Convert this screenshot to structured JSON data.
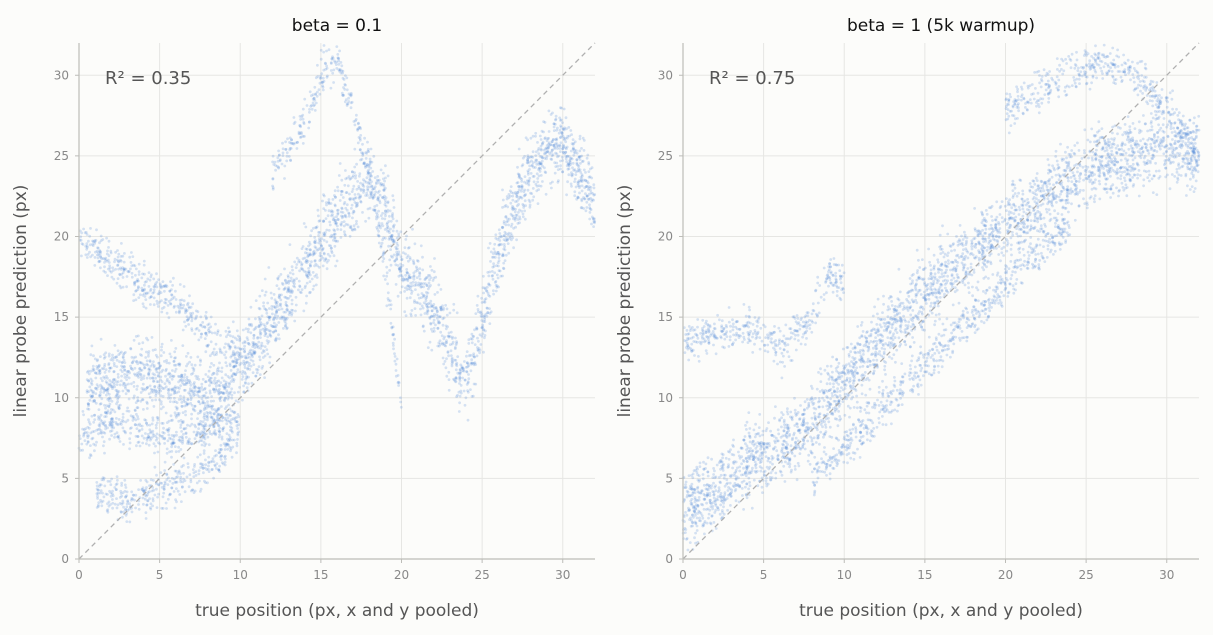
{
  "chart_data": [
    {
      "type": "scatter",
      "title": "beta = 0.1",
      "annotation": "R² = 0.35",
      "xlabel": "true position (px, x and y pooled)",
      "ylabel": "linear probe prediction (px)",
      "xlim": [
        0,
        32
      ],
      "ylim": [
        0,
        32
      ],
      "xticks": [
        "0",
        "5",
        "10",
        "15",
        "20",
        "25",
        "30"
      ],
      "yticks": [
        "0",
        "5",
        "10",
        "15",
        "20",
        "25",
        "30"
      ],
      "grid": true,
      "reference_line": "y = x (dashed)",
      "point_color": "#4a86d8",
      "reference_color": "#b0b0b0",
      "series": [
        {
          "x": [
            0.5,
            2,
            4,
            6,
            8,
            9,
            10,
            11,
            12,
            13,
            14,
            15,
            16,
            17,
            18,
            19,
            20,
            21,
            22,
            23,
            24,
            25,
            26,
            27,
            28,
            29,
            30,
            31,
            32
          ],
          "y": [
            10.5,
            11,
            11.5,
            10.5,
            10,
            10.5,
            12,
            13.5,
            15,
            16.5,
            18,
            19.5,
            21,
            22.5,
            23.5,
            22,
            18,
            17,
            15.5,
            13,
            11,
            15,
            19,
            22,
            24,
            25.5,
            26,
            24,
            22
          ]
        },
        {
          "x": [
            0,
            2,
            4,
            6,
            8,
            10
          ],
          "y": [
            20,
            18.5,
            17,
            16,
            14,
            13
          ]
        },
        {
          "x": [
            0,
            2,
            4,
            6,
            8,
            10
          ],
          "y": [
            7.5,
            8.5,
            8,
            7.5,
            8,
            9
          ]
        },
        {
          "x": [
            1,
            3,
            5,
            7,
            9,
            10
          ],
          "y": [
            4,
            3.5,
            4.5,
            5,
            6.5,
            8
          ]
        },
        {
          "x": [
            12,
            14,
            15,
            16,
            17,
            18,
            19,
            20
          ],
          "y": [
            24,
            27,
            30,
            31,
            28,
            24,
            18,
            9
          ]
        }
      ]
    },
    {
      "type": "scatter",
      "title": "beta = 1 (5k warmup)",
      "annotation": "R² = 0.75",
      "xlabel": "true position (px, x and y pooled)",
      "ylabel": "linear probe prediction (px)",
      "xlim": [
        0,
        32
      ],
      "ylim": [
        0,
        32
      ],
      "xticks": [
        "0",
        "5",
        "10",
        "15",
        "20",
        "25",
        "30"
      ],
      "yticks": [
        "0",
        "5",
        "10",
        "15",
        "20",
        "25",
        "30"
      ],
      "grid": true,
      "reference_line": "y = x (dashed)",
      "point_color": "#4a86d8",
      "reference_color": "#b0b0b0",
      "series": [
        {
          "x": [
            0,
            2,
            4,
            6,
            8,
            10,
            12,
            14,
            16,
            18,
            20,
            22,
            24,
            26,
            28,
            30,
            32
          ],
          "y": [
            3,
            4,
            6,
            7,
            8.5,
            11,
            13.5,
            15.5,
            17.5,
            19,
            20.5,
            22,
            23.5,
            24.5,
            25,
            25.5,
            25
          ]
        },
        {
          "x": [
            0,
            2,
            4,
            6,
            8,
            9,
            10
          ],
          "y": [
            13.5,
            14,
            14.5,
            13,
            15,
            18,
            17
          ]
        },
        {
          "x": [
            20,
            22,
            24,
            26,
            28,
            30,
            32
          ],
          "y": [
            28,
            29,
            30,
            31,
            30,
            28,
            25
          ]
        },
        {
          "x": [
            8,
            10,
            12,
            14,
            16,
            18,
            20,
            22,
            24
          ],
          "y": [
            5,
            7,
            9,
            11,
            13,
            15,
            17,
            19,
            21
          ]
        }
      ]
    }
  ]
}
